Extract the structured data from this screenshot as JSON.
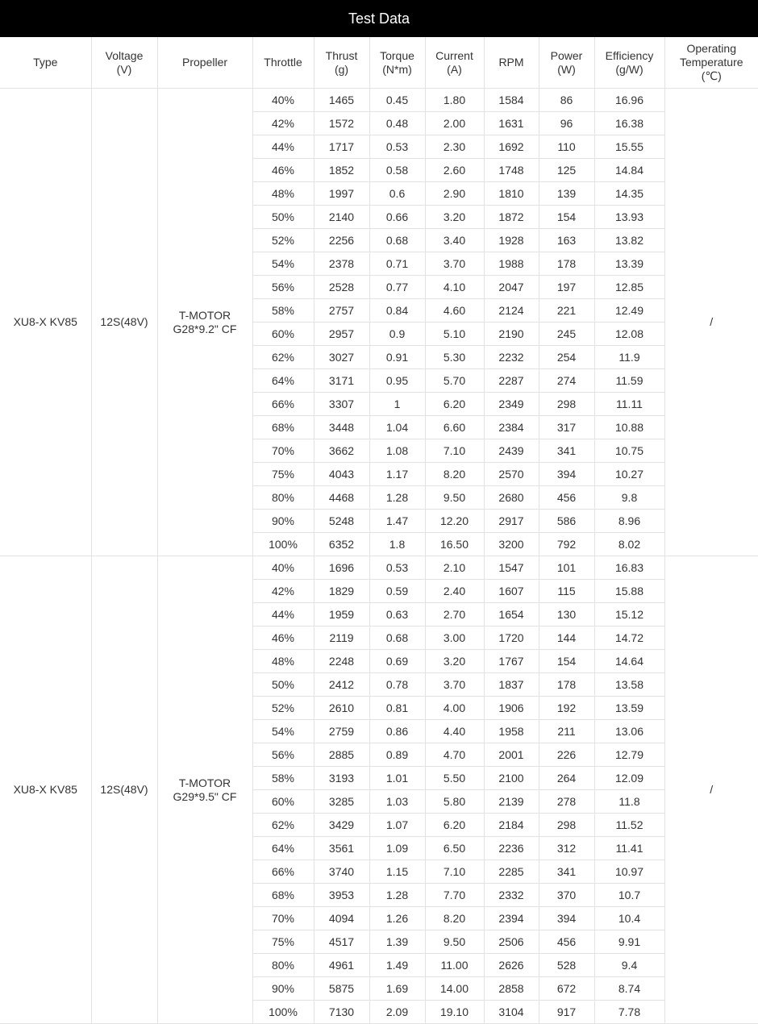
{
  "title": "Test Data",
  "columns": [
    "Type",
    "Voltage\n(V)",
    "Propeller",
    "Throttle",
    "Thrust\n(g)",
    "Torque\n(N*m)",
    "Current\n(A)",
    "RPM",
    "Power\n(W)",
    "Efficiency\n(g/W)",
    "Operating\nTemperature\n(℃)"
  ],
  "groups": [
    {
      "type": "XU8-X KV85",
      "voltage": "12S(48V)",
      "propeller": "T-MOTOR\nG28*9.2\" CF",
      "temperature": "/",
      "rows": [
        [
          "40%",
          "1465",
          "0.45",
          "1.80",
          "1584",
          "86",
          "16.96"
        ],
        [
          "42%",
          "1572",
          "0.48",
          "2.00",
          "1631",
          "96",
          "16.38"
        ],
        [
          "44%",
          "1717",
          "0.53",
          "2.30",
          "1692",
          "110",
          "15.55"
        ],
        [
          "46%",
          "1852",
          "0.58",
          "2.60",
          "1748",
          "125",
          "14.84"
        ],
        [
          "48%",
          "1997",
          "0.6",
          "2.90",
          "1810",
          "139",
          "14.35"
        ],
        [
          "50%",
          "2140",
          "0.66",
          "3.20",
          "1872",
          "154",
          "13.93"
        ],
        [
          "52%",
          "2256",
          "0.68",
          "3.40",
          "1928",
          "163",
          "13.82"
        ],
        [
          "54%",
          "2378",
          "0.71",
          "3.70",
          "1988",
          "178",
          "13.39"
        ],
        [
          "56%",
          "2528",
          "0.77",
          "4.10",
          "2047",
          "197",
          "12.85"
        ],
        [
          "58%",
          "2757",
          "0.84",
          "4.60",
          "2124",
          "221",
          "12.49"
        ],
        [
          "60%",
          "2957",
          "0.9",
          "5.10",
          "2190",
          "245",
          "12.08"
        ],
        [
          "62%",
          "3027",
          "0.91",
          "5.30",
          "2232",
          "254",
          "11.9"
        ],
        [
          "64%",
          "3171",
          "0.95",
          "5.70",
          "2287",
          "274",
          "11.59"
        ],
        [
          "66%",
          "3307",
          "1",
          "6.20",
          "2349",
          "298",
          "11.11"
        ],
        [
          "68%",
          "3448",
          "1.04",
          "6.60",
          "2384",
          "317",
          "10.88"
        ],
        [
          "70%",
          "3662",
          "1.08",
          "7.10",
          "2439",
          "341",
          "10.75"
        ],
        [
          "75%",
          "4043",
          "1.17",
          "8.20",
          "2570",
          "394",
          "10.27"
        ],
        [
          "80%",
          "4468",
          "1.28",
          "9.50",
          "2680",
          "456",
          "9.8"
        ],
        [
          "90%",
          "5248",
          "1.47",
          "12.20",
          "2917",
          "586",
          "8.96"
        ],
        [
          "100%",
          "6352",
          "1.8",
          "16.50",
          "3200",
          "792",
          "8.02"
        ]
      ]
    },
    {
      "type": "XU8-X KV85",
      "voltage": "12S(48V)",
      "propeller": "T-MOTOR\nG29*9.5\" CF",
      "temperature": "/",
      "rows": [
        [
          "40%",
          "1696",
          "0.53",
          "2.10",
          "1547",
          "101",
          "16.83"
        ],
        [
          "42%",
          "1829",
          "0.59",
          "2.40",
          "1607",
          "115",
          "15.88"
        ],
        [
          "44%",
          "1959",
          "0.63",
          "2.70",
          "1654",
          "130",
          "15.12"
        ],
        [
          "46%",
          "2119",
          "0.68",
          "3.00",
          "1720",
          "144",
          "14.72"
        ],
        [
          "48%",
          "2248",
          "0.69",
          "3.20",
          "1767",
          "154",
          "14.64"
        ],
        [
          "50%",
          "2412",
          "0.78",
          "3.70",
          "1837",
          "178",
          "13.58"
        ],
        [
          "52%",
          "2610",
          "0.81",
          "4.00",
          "1906",
          "192",
          "13.59"
        ],
        [
          "54%",
          "2759",
          "0.86",
          "4.40",
          "1958",
          "211",
          "13.06"
        ],
        [
          "56%",
          "2885",
          "0.89",
          "4.70",
          "2001",
          "226",
          "12.79"
        ],
        [
          "58%",
          "3193",
          "1.01",
          "5.50",
          "2100",
          "264",
          "12.09"
        ],
        [
          "60%",
          "3285",
          "1.03",
          "5.80",
          "2139",
          "278",
          "11.8"
        ],
        [
          "62%",
          "3429",
          "1.07",
          "6.20",
          "2184",
          "298",
          "11.52"
        ],
        [
          "64%",
          "3561",
          "1.09",
          "6.50",
          "2236",
          "312",
          "11.41"
        ],
        [
          "66%",
          "3740",
          "1.15",
          "7.10",
          "2285",
          "341",
          "10.97"
        ],
        [
          "68%",
          "3953",
          "1.28",
          "7.70",
          "2332",
          "370",
          "10.7"
        ],
        [
          "70%",
          "4094",
          "1.26",
          "8.20",
          "2394",
          "394",
          "10.4"
        ],
        [
          "75%",
          "4517",
          "1.39",
          "9.50",
          "2506",
          "456",
          "9.91"
        ],
        [
          "80%",
          "4961",
          "1.49",
          "11.00",
          "2626",
          "528",
          "9.4"
        ],
        [
          "90%",
          "5875",
          "1.69",
          "14.00",
          "2858",
          "672",
          "8.74"
        ],
        [
          "100%",
          "7130",
          "2.09",
          "19.10",
          "3104",
          "917",
          "7.78"
        ]
      ]
    }
  ]
}
